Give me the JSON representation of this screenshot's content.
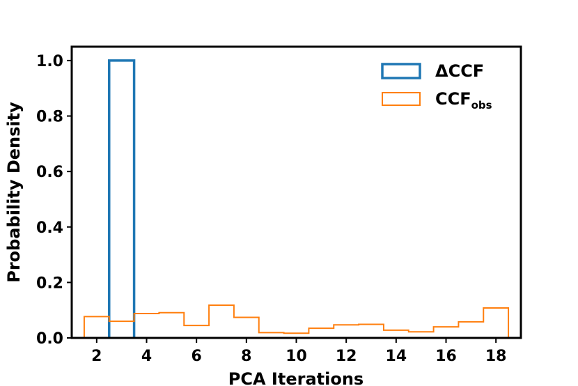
{
  "chart_data": {
    "type": "histogram",
    "xlabel": "PCA Iterations",
    "ylabel": "Probability Density",
    "xlim": [
      1.0,
      19.0
    ],
    "ylim": [
      0.0,
      1.05
    ],
    "xticks": [
      2,
      4,
      6,
      8,
      10,
      12,
      14,
      16,
      18
    ],
    "yticks": [
      0.0,
      0.2,
      0.4,
      0.6,
      0.8,
      1.0
    ],
    "ytick_labels": [
      "0.0",
      "0.2",
      "0.4",
      "0.6",
      "0.8",
      "1.0"
    ],
    "legend_position": "top-right",
    "grid": false,
    "series": [
      {
        "name": "ΔCCF",
        "style": "step-outline",
        "color": "#1f77b4",
        "bin_edges": [
          2.5,
          3.5
        ],
        "values": [
          1.0
        ]
      },
      {
        "name": "CCF",
        "name_subscript": "obs",
        "style": "step-outline",
        "color": "#ff7f0e",
        "bin_edges": [
          1.5,
          2.5,
          3.5,
          4.5,
          5.5,
          6.5,
          7.5,
          8.5,
          9.5,
          10.5,
          11.5,
          12.5,
          13.5,
          14.5,
          15.5,
          16.5,
          17.5,
          18.5
        ],
        "values": [
          0.077,
          0.06,
          0.088,
          0.091,
          0.045,
          0.118,
          0.074,
          0.019,
          0.017,
          0.035,
          0.047,
          0.049,
          0.028,
          0.022,
          0.04,
          0.058,
          0.108
        ]
      }
    ]
  }
}
